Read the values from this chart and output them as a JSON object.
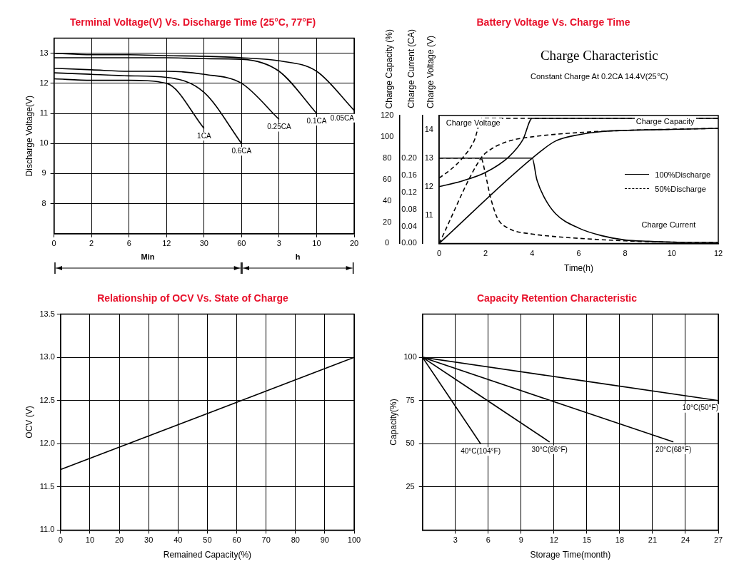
{
  "chart_data": [
    {
      "type": "line",
      "title": "Terminal Voltage(V) Vs. Discharge Time (25°C, 77°F)",
      "ylabel": "Discharge Voltage(V)",
      "categories": [
        "0",
        "2",
        "6",
        "12",
        "30",
        "60",
        "3",
        "10",
        "20"
      ],
      "annotations": [
        "Min",
        "h"
      ],
      "ylim": [
        7,
        13.5
      ],
      "yticks": [
        8,
        9,
        10,
        11,
        12,
        13
      ],
      "grid": true,
      "series": [
        {
          "name": "1CA",
          "color": "#000000",
          "values": [
            12.15,
            12.1,
            12.1,
            12.0,
            10.5,
            null,
            null,
            null,
            null
          ]
        },
        {
          "name": "0.6CA",
          "color": "#000000",
          "values": [
            12.35,
            12.3,
            12.25,
            12.2,
            11.7,
            10.0,
            null,
            null,
            null
          ]
        },
        {
          "name": "0.25CA",
          "color": "#000000",
          "values": [
            12.5,
            12.45,
            12.4,
            12.4,
            12.3,
            12.0,
            10.8,
            null,
            null
          ]
        },
        {
          "name": "0.1CA",
          "color": "#000000",
          "values": [
            12.85,
            12.85,
            12.85,
            12.85,
            12.82,
            12.8,
            12.4,
            11.0,
            null
          ]
        },
        {
          "name": "0.05CA",
          "color": "#000000",
          "values": [
            13.0,
            12.95,
            12.95,
            12.92,
            12.9,
            12.85,
            12.75,
            12.4,
            11.1
          ]
        }
      ]
    },
    {
      "type": "line",
      "title": "Battery Voltage Vs. Charge Time",
      "subtitle": "Charge Characteristic",
      "annotations": [
        "Constant Charge At 0.2CA 14.4V(25℃)",
        "Charge Voltage",
        "Charge Capacity",
        "Charge Current"
      ],
      "xlabel": "Time(h)",
      "ylabel": "Charge Capacity (%)",
      "y2label": "Charge Current (CA)",
      "y3label": "Charge Voltage (V)",
      "xlim": [
        0,
        12
      ],
      "xticks": [
        0,
        2,
        4,
        6,
        8,
        10,
        12
      ],
      "ylim": [
        0,
        120
      ],
      "yticks": [
        0,
        20,
        40,
        60,
        80,
        100,
        120
      ],
      "y2lim": [
        0,
        0.3
      ],
      "y2ticks": [
        {
          "value": 0,
          "label": "0.00"
        },
        {
          "value": 0.04,
          "label": "0.04"
        },
        {
          "value": 0.08,
          "label": "0.08"
        },
        {
          "value": 0.12,
          "label": "0.12"
        },
        {
          "value": 0.16,
          "label": "0.16"
        },
        {
          "value": 0.2,
          "label": "0.20"
        }
      ],
      "y3lim": [
        10,
        14.5
      ],
      "y3ticks": [
        11,
        12,
        13,
        14
      ],
      "legend": "right",
      "series": [
        {
          "name": "100%Discharge",
          "color": "#000000",
          "line_style": "solid",
          "axis": "y3",
          "x": [
            0,
            1,
            2,
            3,
            3.6,
            4,
            12
          ],
          "values": [
            12.0,
            12.2,
            12.5,
            13.05,
            13.65,
            14.4,
            14.4
          ]
        },
        {
          "name": "50%Discharge",
          "color": "#000000",
          "line_style": "dashed",
          "axis": "y3",
          "x": [
            0,
            0.5,
            1,
            1.5,
            1.85,
            12
          ],
          "values": [
            12.3,
            12.6,
            13.0,
            13.6,
            14.4,
            14.4
          ]
        },
        {
          "color": "#000000",
          "line_style": "solid",
          "axis": "y2",
          "x": [
            0,
            4,
            4.2,
            4.5,
            5,
            6,
            7,
            8,
            9,
            10,
            12
          ],
          "values": [
            0.2,
            0.2,
            0.15,
            0.11,
            0.07,
            0.036,
            0.018,
            0.008,
            0.005,
            0.003,
            0.002
          ]
        },
        {
          "color": "#000000",
          "line_style": "dashed",
          "axis": "y2",
          "x": [
            0,
            1.8,
            2.0,
            2.2,
            2.5,
            3,
            4,
            5,
            6,
            8,
            10,
            12
          ],
          "values": [
            0.2,
            0.2,
            0.16,
            0.11,
            0.06,
            0.035,
            0.022,
            0.016,
            0.012,
            0.006,
            0.003,
            0.002
          ]
        },
        {
          "color": "#000000",
          "line_style": "solid",
          "x": [
            0,
            4,
            5,
            6,
            7,
            8,
            10,
            12
          ],
          "values": [
            0,
            80,
            96,
            102,
            105,
            106,
            107,
            108
          ]
        },
        {
          "color": "#000000",
          "line_style": "dashed",
          "x": [
            0,
            1.8,
            2.2,
            3,
            4,
            6,
            8,
            12
          ],
          "values": [
            0,
            80,
            88,
            96,
            100,
            104,
            106,
            108
          ]
        }
      ]
    },
    {
      "type": "line",
      "title": "Relationship of OCV Vs. State of Charge",
      "xlabel": "Remained Capacity(%)",
      "ylabel": "OCV (V)",
      "xlim": [
        0,
        100
      ],
      "xticks": [
        0,
        10,
        20,
        30,
        40,
        50,
        60,
        70,
        80,
        90,
        100
      ],
      "ylim": [
        11,
        13.5
      ],
      "yticks": [
        {
          "value": 11,
          "label": "11.0"
        },
        11.5,
        {
          "value": 12,
          "label": "12.0"
        },
        12.5,
        {
          "value": 13,
          "label": "13.0"
        },
        13.5
      ],
      "grid": true,
      "series": [
        {
          "color": "#000000",
          "x": [
            0,
            100
          ],
          "values": [
            11.7,
            13.0
          ]
        }
      ]
    },
    {
      "type": "line",
      "title": "Capacity Retention Characteristic",
      "xlabel": "Storage Time(month)",
      "ylabel": "Capacity(%)",
      "xlim": [
        0,
        27
      ],
      "xticks": [
        3,
        6,
        9,
        12,
        15,
        18,
        21,
        24,
        27
      ],
      "ylim": [
        0,
        125
      ],
      "yticks": [
        25,
        50,
        75,
        100
      ],
      "grid": true,
      "series": [
        {
          "name": "40°C(104°F)",
          "color": "#000000",
          "x": [
            0,
            5.3
          ],
          "values": [
            100,
            50
          ]
        },
        {
          "name": "30°C(86°F)",
          "color": "#000000",
          "x": [
            0,
            11.6
          ],
          "values": [
            100,
            51
          ]
        },
        {
          "name": "20°C(68°F)",
          "color": "#000000",
          "x": [
            0,
            22.9
          ],
          "values": [
            100,
            51
          ]
        },
        {
          "name": "10°C(50°F)",
          "color": "#000000",
          "x": [
            0,
            27
          ],
          "values": [
            100,
            75
          ]
        }
      ]
    }
  ]
}
